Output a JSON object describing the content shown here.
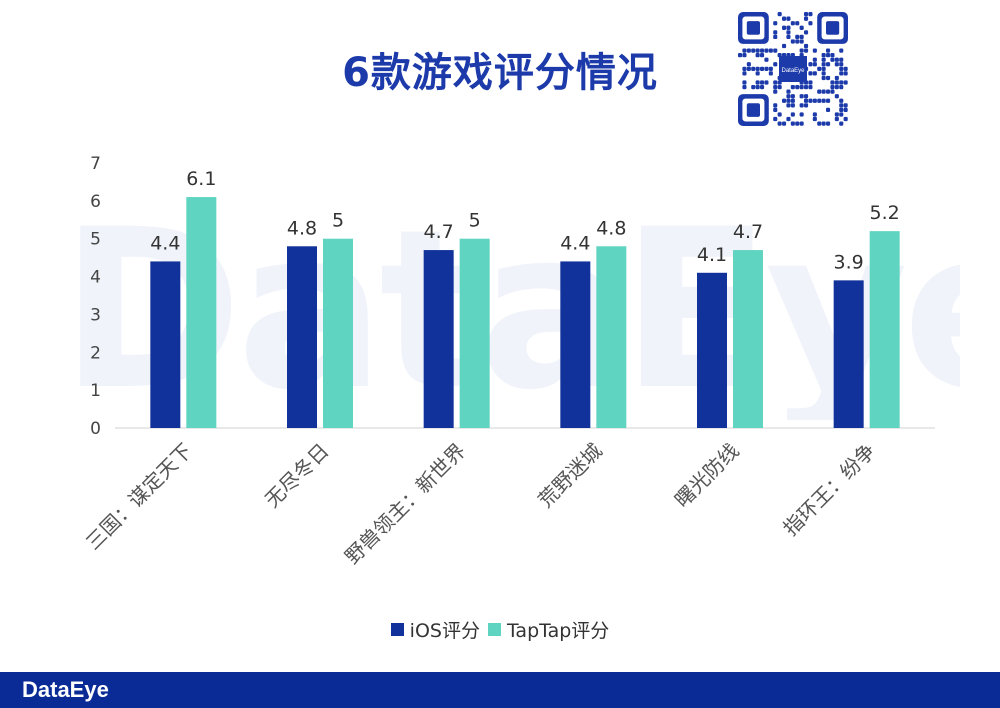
{
  "header": {
    "title": "6款游戏评分情况"
  },
  "watermark": "DataEye",
  "qr": {
    "center_label": "DataEye"
  },
  "footer": {
    "logo": "DataEye"
  },
  "colors": {
    "ios": "#11329b",
    "taptap": "#5fd4c0",
    "title": "#1c3aa9",
    "footer": "#0a2a96"
  },
  "chart_data": {
    "type": "bar",
    "categories": [
      "三国：谋定天下",
      "无尽冬日",
      "野兽领主：新世界",
      "荒野迷城",
      "曙光防线",
      "指环王：纷争"
    ],
    "series": [
      {
        "name": "iOS评分",
        "values": [
          4.4,
          4.8,
          4.7,
          4.4,
          4.1,
          3.9
        ],
        "labels": [
          "4.4",
          "4.8",
          "4.7",
          "4.4",
          "4.1",
          "3.9"
        ]
      },
      {
        "name": "TapTap评分",
        "values": [
          6.1,
          5,
          5,
          4.8,
          4.7,
          5.2
        ],
        "labels": [
          "6.1",
          "5",
          "5",
          "4.8",
          "4.7",
          "5.2"
        ]
      }
    ],
    "yticks": [
      "0",
      "1",
      "2",
      "3",
      "4",
      "5",
      "6",
      "7"
    ],
    "ylim": [
      0,
      7
    ],
    "legend": "bottom",
    "grid": false
  }
}
